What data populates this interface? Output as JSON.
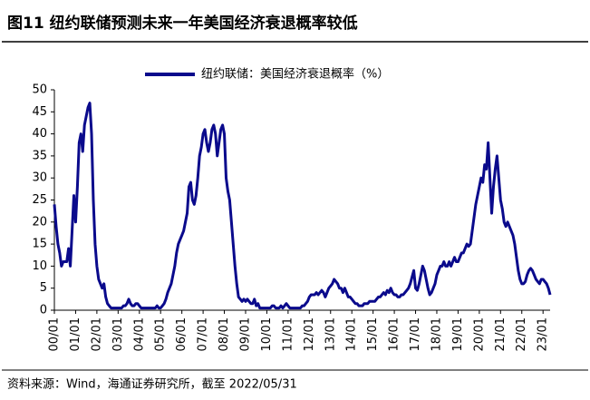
{
  "chart_data": {
    "type": "line",
    "title": "图11 纽约联储预测未来一年美国经济衰退概率较低",
    "source": "资料来源：Wind，海通证券研究所，截至 2022/05/31",
    "categories": [
      "00/01",
      null,
      null,
      null,
      null,
      null,
      null,
      null,
      null,
      null,
      null,
      null,
      "01/01",
      null,
      null,
      null,
      null,
      null,
      null,
      null,
      null,
      null,
      null,
      null,
      "02/01",
      null,
      null,
      null,
      null,
      null,
      null,
      null,
      null,
      null,
      null,
      null,
      "03/01",
      null,
      null,
      null,
      null,
      null,
      null,
      null,
      null,
      null,
      null,
      null,
      "04/01",
      null,
      null,
      null,
      null,
      null,
      null,
      null,
      null,
      null,
      null,
      null,
      "05/01",
      null,
      null,
      null,
      null,
      null,
      null,
      null,
      null,
      null,
      null,
      null,
      "06/01",
      null,
      null,
      null,
      null,
      null,
      null,
      null,
      null,
      null,
      null,
      null,
      "07/01",
      null,
      null,
      null,
      null,
      null,
      null,
      null,
      null,
      null,
      null,
      null,
      "08/01",
      null,
      null,
      null,
      null,
      null,
      null,
      null,
      null,
      null,
      null,
      null,
      "09/01",
      null,
      null,
      null,
      null,
      null,
      null,
      null,
      null,
      null,
      null,
      null,
      "10/01",
      null,
      null,
      null,
      null,
      null,
      null,
      null,
      null,
      null,
      null,
      null,
      "11/01",
      null,
      null,
      null,
      null,
      null,
      null,
      null,
      null,
      null,
      null,
      null,
      "12/01",
      null,
      null,
      null,
      null,
      null,
      null,
      null,
      null,
      null,
      null,
      null,
      "13/01",
      null,
      null,
      null,
      null,
      null,
      null,
      null,
      null,
      null,
      null,
      null,
      "14/01",
      null,
      null,
      null,
      null,
      null,
      null,
      null,
      null,
      null,
      null,
      null,
      "15/01",
      null,
      null,
      null,
      null,
      null,
      null,
      null,
      null,
      null,
      null,
      null,
      "16/01",
      null,
      null,
      null,
      null,
      null,
      null,
      null,
      null,
      null,
      null,
      null,
      "17/01",
      null,
      null,
      null,
      null,
      null,
      null,
      null,
      null,
      null,
      null,
      null,
      "18/01",
      null,
      null,
      null,
      null,
      null,
      null,
      null,
      null,
      null,
      null,
      null,
      "19/01",
      null,
      null,
      null,
      null,
      null,
      null,
      null,
      null,
      null,
      null,
      null,
      "20/01",
      null,
      null,
      null,
      null,
      null,
      null,
      null,
      null,
      null,
      null,
      null,
      "21/01",
      null,
      null,
      null,
      null,
      null,
      null,
      null,
      null,
      null,
      null,
      null,
      "22/01",
      null,
      null,
      null,
      null,
      null,
      null,
      null,
      null,
      null,
      null,
      null,
      "23/01",
      null,
      null,
      null,
      null
    ],
    "series": [
      {
        "name": "纽约联储：美国经济衰退概率（%）",
        "color": "#0a0a8c",
        "values": [
          24,
          19,
          15,
          13,
          10,
          11,
          11,
          11,
          14,
          10,
          18,
          26,
          20,
          28,
          38,
          40,
          36,
          42,
          44,
          46,
          47,
          40,
          25,
          15,
          10,
          7,
          6,
          5,
          6,
          3,
          1.5,
          1,
          0.5,
          0.5,
          0.5,
          0.5,
          0.5,
          0.5,
          0.5,
          1,
          1,
          1.5,
          2.5,
          1.5,
          1,
          1,
          1.5,
          1.5,
          1,
          0.5,
          0.5,
          0.5,
          0.5,
          0.5,
          0.5,
          0.5,
          0.5,
          0.5,
          1,
          0.5,
          0.5,
          1,
          1.5,
          2.5,
          4,
          5,
          6,
          8,
          10,
          13,
          15,
          16,
          17,
          18,
          20,
          22,
          28,
          29,
          25,
          24,
          26,
          30,
          35,
          37,
          40,
          41,
          38,
          36,
          38,
          41,
          42,
          40,
          35,
          38,
          41,
          42,
          40,
          30,
          27,
          25,
          20,
          15,
          10,
          6,
          3,
          2.5,
          2,
          2.5,
          2,
          2.5,
          2,
          1.5,
          1.5,
          2.5,
          1,
          1.5,
          0.5,
          0.5,
          0.5,
          0.5,
          0.5,
          0.5,
          0.5,
          1,
          1,
          0.5,
          0.5,
          0.5,
          1,
          0.5,
          1,
          1.5,
          1,
          0.5,
          0.5,
          0.5,
          0.5,
          0.5,
          0.5,
          0.5,
          1,
          1,
          1.5,
          2,
          3,
          3.5,
          3.5,
          3.5,
          4,
          3.5,
          4,
          4.5,
          4,
          3,
          4,
          5,
          5.5,
          6,
          7,
          6.5,
          6,
          5,
          5,
          4,
          5,
          4,
          3,
          3,
          2.5,
          2,
          1.5,
          1.5,
          1,
          1,
          1,
          1.5,
          1.5,
          1.5,
          2,
          2,
          2,
          2,
          2.5,
          3,
          3,
          3.5,
          4,
          3.5,
          4.5,
          4,
          5,
          4,
          3.5,
          3.5,
          3,
          3,
          3.5,
          3.5,
          4,
          4.5,
          5,
          6,
          7.5,
          9,
          5,
          4.5,
          6,
          8,
          10,
          9,
          7,
          5,
          3.5,
          4,
          5,
          6,
          8,
          9,
          10,
          10,
          11,
          10,
          10,
          11,
          10,
          11,
          12,
          11,
          11,
          12,
          13,
          13,
          14,
          15,
          14.5,
          15,
          18,
          21,
          24,
          26,
          28,
          30,
          29,
          33,
          32,
          38,
          30,
          22,
          28,
          32,
          35,
          30,
          25,
          23,
          20,
          19,
          20,
          19,
          18,
          17,
          15,
          12,
          9,
          7,
          6,
          6,
          6.5,
          8,
          9,
          9.5,
          9,
          8,
          7,
          6.5,
          6,
          7,
          7,
          6.5,
          6,
          5,
          3.5
        ]
      }
    ],
    "ylim": [
      0,
      50
    ],
    "yticks": [
      0,
      5,
      10,
      15,
      20,
      25,
      30,
      35,
      40,
      45,
      50
    ],
    "grid": false,
    "legend": "top"
  }
}
